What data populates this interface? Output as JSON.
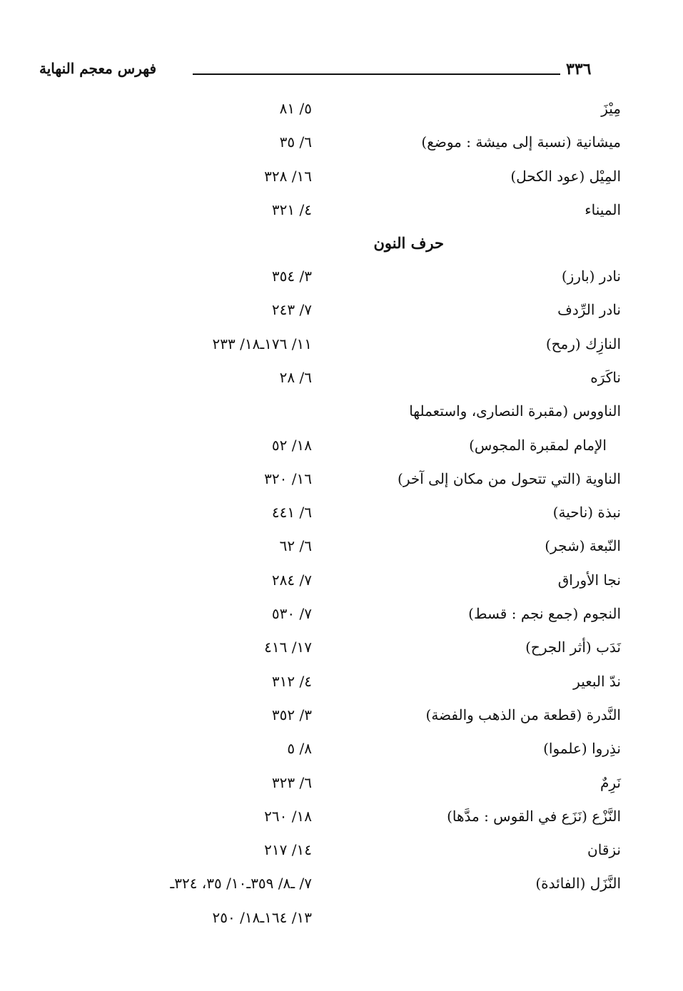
{
  "header": {
    "page_number": "٣٣٦",
    "title": "فهرس معجم النهاية"
  },
  "section_heading": "حرف النون",
  "entries_before": [
    {
      "term": "مِيْزَ",
      "ref": "٥/ ٨١"
    },
    {
      "term": "ميشانية (نسبة إلى ميشة : موضع)",
      "ref": "٦/ ٣٥"
    },
    {
      "term": "المِيْل (عود الكحل)",
      "ref": "١٦/ ٣٢٨"
    },
    {
      "term": "الميناء",
      "ref": "٤/ ٣٢١"
    }
  ],
  "entries_after": [
    {
      "term": "نادر (بارز)",
      "ref": "٣/ ٣٥٤"
    },
    {
      "term": "نادر الرِّدف",
      "ref": "٧/ ٢٤٣"
    },
    {
      "term": "النازِك (رمح)",
      "ref": "١١/ ١٧٦ـ١٨/ ٢٣٣"
    },
    {
      "term": "ناكَرَه",
      "ref": "٦/ ٢٨"
    },
    {
      "term": "الناووس (مقبرة النصارى، واستعملها",
      "ref": ""
    },
    {
      "term": "الإمام لمقبرة المجوس)",
      "ref": "١٨/ ٥٢",
      "indent": true
    },
    {
      "term": "الناوية (التي تتحول من مكان إلى آخر)",
      "ref": "١٦/ ٣٢٠"
    },
    {
      "term": "نبذة (ناحية)",
      "ref": "٦/ ٤٤١"
    },
    {
      "term": "النّبعة (شجر)",
      "ref": "٦/ ٦٢"
    },
    {
      "term": "نجا الأوراق",
      "ref": "٧/ ٢٨٤"
    },
    {
      "term": "النجوم (جمع نجم : قسط)",
      "ref": "٧/ ٥٣٠"
    },
    {
      "term": "نَدَب (أثر الجرح)",
      "ref": "١٧/ ٤١٦"
    },
    {
      "term": "ندّ البعير",
      "ref": "٤/ ٣١٢"
    },
    {
      "term": "النَّدرة (قطعة من الذهب والفضة)",
      "ref": "٣/ ٣٥٢"
    },
    {
      "term": "نذِروا (علموا)",
      "ref": "٨/ ٥"
    },
    {
      "term": "نَرِمٌ",
      "ref": "٦/ ٣٢٣"
    },
    {
      "term": "النَّزْع (نَزَع في القوس : مدَّها)",
      "ref": "١٨/ ٢٦٠"
    },
    {
      "term": "نزقان",
      "ref": "١٤/ ٢١٧"
    },
    {
      "term": "النَّزَل (الفائدة)",
      "ref": "٧/ ـ٨/ ٣٥٩ـ١٠/ ٣٥، ٣٢٤ـ"
    },
    {
      "term": "",
      "ref": "١٣/ ١٦٤ـ١٨/ ٢٥٠"
    }
  ]
}
